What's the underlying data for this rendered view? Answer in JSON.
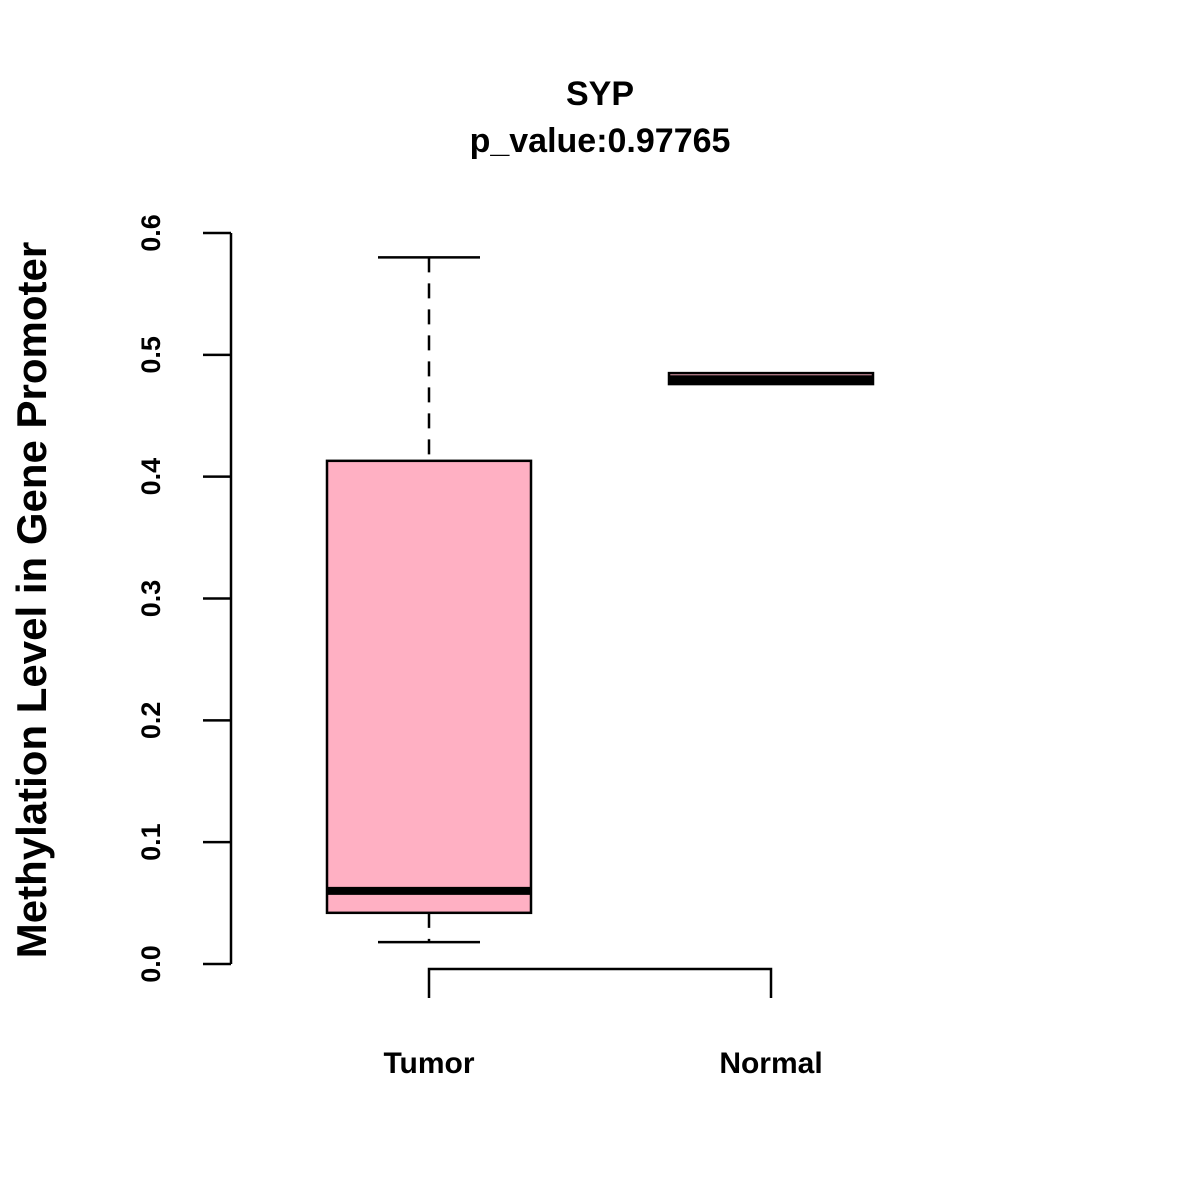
{
  "chart_data": {
    "type": "box",
    "title": "SYP",
    "subtitle": "p_value:0.97765",
    "ylabel": "Methylation Level in Gene Promoter",
    "xlabel": "",
    "ylim": [
      0,
      0.6
    ],
    "yticks": [
      0.0,
      0.1,
      0.2,
      0.3,
      0.4,
      0.5,
      0.6
    ],
    "ytick_labels": [
      "0.0",
      "0.1",
      "0.2",
      "0.3",
      "0.4",
      "0.5",
      "0.6"
    ],
    "grid": false,
    "categories": [
      "Tumor",
      "Normal"
    ],
    "groups": [
      {
        "category": "Tumor",
        "min": 0.018,
        "q1": 0.042,
        "median": 0.06,
        "q3": 0.413,
        "max": 0.58,
        "fill": "#FFB0C3"
      },
      {
        "category": "Normal",
        "min": 0.476,
        "q1": 0.476,
        "median": 0.48,
        "q3": 0.485,
        "max": 0.485,
        "fill": "#FFB0C3"
      }
    ],
    "bracket": {
      "from": "Tumor",
      "to": "Normal"
    }
  }
}
